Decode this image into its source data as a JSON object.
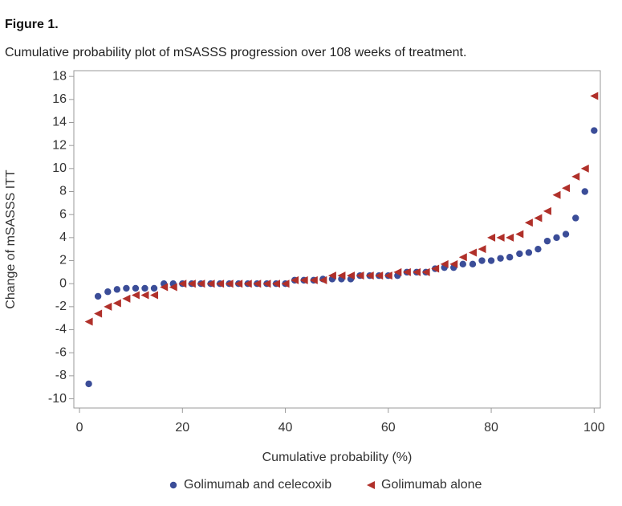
{
  "figure_label": "Figure 1.",
  "chart_data": {
    "type": "scatter",
    "title": "Cumulative probability plot of mSASSS progression over 108 weeks of treatment.",
    "xlabel": "Cumulative probability (%)",
    "ylabel": "Change of mSASSS ITT",
    "x": [
      1.8,
      3.6,
      5.5,
      7.3,
      9.1,
      10.9,
      12.7,
      14.5,
      16.4,
      18.2,
      20,
      21.8,
      23.6,
      25.5,
      27.3,
      29.1,
      30.9,
      32.7,
      34.5,
      36.4,
      38.2,
      40,
      41.8,
      43.6,
      45.5,
      47.3,
      49.1,
      50.9,
      52.7,
      54.5,
      56.4,
      58.2,
      60,
      61.8,
      63.6,
      65.5,
      67.3,
      69.1,
      70.9,
      72.7,
      74.5,
      76.4,
      78.2,
      80,
      81.8,
      83.6,
      85.5,
      87.3,
      89.1,
      90.9,
      92.7,
      94.5,
      96.4,
      98.2,
      100
    ],
    "series": [
      {
        "name": "Golimumab and celecoxib",
        "color": "#3b4d98",
        "marker": "circle",
        "values": [
          -8.7,
          -1.1,
          -0.7,
          -0.5,
          -0.4,
          -0.4,
          -0.4,
          -0.4,
          0,
          0,
          0,
          0,
          0,
          0,
          0,
          0,
          0,
          0,
          0,
          0,
          0,
          0,
          0.3,
          0.3,
          0.3,
          0.4,
          0.4,
          0.4,
          0.4,
          0.7,
          0.7,
          0.7,
          0.7,
          0.7,
          1.0,
          1.0,
          1.0,
          1.3,
          1.4,
          1.4,
          1.7,
          1.7,
          2.0,
          2.0,
          2.2,
          2.3,
          2.6,
          2.7,
          3.0,
          3.7,
          4.0,
          4.3,
          5.7,
          8.0,
          13.3
        ]
      },
      {
        "name": "Golimumab alone",
        "color": "#b0302a",
        "marker": "triangle-left",
        "values": [
          -3.3,
          -2.6,
          -2.0,
          -1.7,
          -1.3,
          -1.0,
          -1.0,
          -1.0,
          -0.3,
          -0.3,
          0,
          0,
          0,
          0,
          0,
          0,
          0,
          0,
          0,
          0,
          0,
          0,
          0.3,
          0.3,
          0.3,
          0.3,
          0.7,
          0.7,
          0.7,
          0.7,
          0.7,
          0.7,
          0.7,
          1.0,
          1.0,
          1.0,
          1.0,
          1.3,
          1.7,
          1.7,
          2.3,
          2.7,
          3.0,
          4.0,
          4.0,
          4.0,
          4.3,
          5.3,
          5.7,
          6.3,
          7.7,
          8.3,
          9.3,
          10.0,
          16.3
        ]
      }
    ],
    "xlim": [
      -1.1,
      101.2
    ],
    "xticks": [
      0,
      20,
      40,
      60,
      80,
      100
    ],
    "ylim": [
      -10.8,
      18.5
    ],
    "yticks": [
      -10,
      -8,
      -6,
      -4,
      -2,
      0,
      2,
      4,
      6,
      8,
      10,
      12,
      14,
      16,
      18
    ],
    "grid": false,
    "legend": "bottom"
  }
}
